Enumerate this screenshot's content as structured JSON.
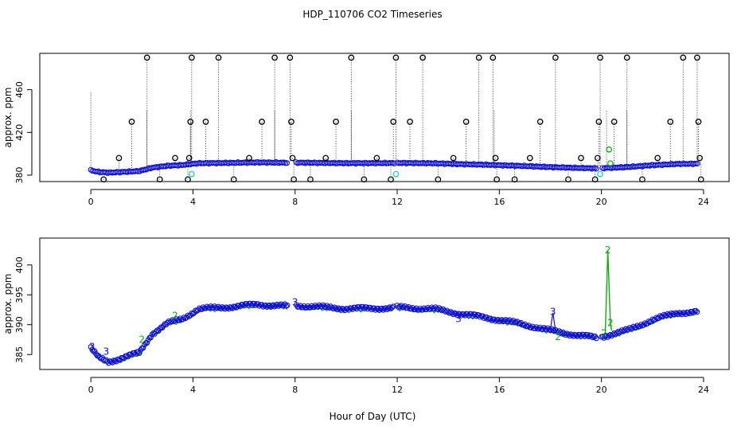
{
  "figure": {
    "title": "HDP_110706  CO2 Timeseries",
    "xlabel": "Hour of Day (UTC)"
  },
  "chart_data": [
    {
      "type": "scatter",
      "name": "top-panel",
      "ylabel": "approx. ppm",
      "xlim": [
        -2,
        25
      ],
      "ylim": [
        374,
        494
      ],
      "x_ticks": [
        0,
        4,
        8,
        12,
        16,
        20,
        24
      ],
      "x_tick_labels": [
        "0",
        "4",
        "8",
        "12",
        "16",
        "20",
        "24"
      ],
      "y_ticks": [
        380,
        420,
        460
      ],
      "y_tick_labels": [
        "380",
        "420",
        "460"
      ],
      "trace_color": "#1010cc",
      "flag_colors": {
        "black": "#000000",
        "cyan": "#22cccc",
        "green": "#11aa11"
      },
      "black_flags": [
        {
          "x": 0.5,
          "y": 376
        },
        {
          "x": 1.1,
          "y": 396
        },
        {
          "x": 1.6,
          "y": 430
        },
        {
          "x": 2.2,
          "y": 490
        },
        {
          "x": 2.7,
          "y": 376
        },
        {
          "x": 3.3,
          "y": 396
        },
        {
          "x": 3.8,
          "y": 376
        },
        {
          "x": 3.85,
          "y": 396
        },
        {
          "x": 3.9,
          "y": 430
        },
        {
          "x": 3.95,
          "y": 490
        },
        {
          "x": 4.5,
          "y": 430
        },
        {
          "x": 5.0,
          "y": 490
        },
        {
          "x": 5.6,
          "y": 376
        },
        {
          "x": 6.2,
          "y": 396
        },
        {
          "x": 6.7,
          "y": 430
        },
        {
          "x": 7.2,
          "y": 490
        },
        {
          "x": 7.8,
          "y": 490
        },
        {
          "x": 7.85,
          "y": 430
        },
        {
          "x": 7.9,
          "y": 396
        },
        {
          "x": 7.95,
          "y": 376
        },
        {
          "x": 8.6,
          "y": 376
        },
        {
          "x": 9.2,
          "y": 396
        },
        {
          "x": 9.6,
          "y": 430
        },
        {
          "x": 10.2,
          "y": 490
        },
        {
          "x": 10.7,
          "y": 376
        },
        {
          "x": 11.2,
          "y": 396
        },
        {
          "x": 11.75,
          "y": 376
        },
        {
          "x": 11.85,
          "y": 430
        },
        {
          "x": 11.95,
          "y": 490
        },
        {
          "x": 12.5,
          "y": 430
        },
        {
          "x": 13.0,
          "y": 490
        },
        {
          "x": 13.6,
          "y": 376
        },
        {
          "x": 14.2,
          "y": 396
        },
        {
          "x": 14.7,
          "y": 430
        },
        {
          "x": 15.2,
          "y": 490
        },
        {
          "x": 15.75,
          "y": 490
        },
        {
          "x": 15.85,
          "y": 396
        },
        {
          "x": 15.9,
          "y": 376
        },
        {
          "x": 16.6,
          "y": 376
        },
        {
          "x": 17.2,
          "y": 396
        },
        {
          "x": 17.6,
          "y": 430
        },
        {
          "x": 18.2,
          "y": 490
        },
        {
          "x": 18.7,
          "y": 376
        },
        {
          "x": 19.2,
          "y": 396
        },
        {
          "x": 19.75,
          "y": 376
        },
        {
          "x": 19.85,
          "y": 396
        },
        {
          "x": 19.9,
          "y": 430
        },
        {
          "x": 19.95,
          "y": 490
        },
        {
          "x": 20.5,
          "y": 430
        },
        {
          "x": 21.0,
          "y": 490
        },
        {
          "x": 21.6,
          "y": 376
        },
        {
          "x": 22.2,
          "y": 396
        },
        {
          "x": 22.7,
          "y": 430
        },
        {
          "x": 23.2,
          "y": 490
        },
        {
          "x": 23.75,
          "y": 490
        },
        {
          "x": 23.8,
          "y": 430
        },
        {
          "x": 23.85,
          "y": 396
        },
        {
          "x": 23.9,
          "y": 376
        }
      ],
      "cyan_flags": [
        {
          "x": 3.95,
          "y": 381
        },
        {
          "x": 11.95,
          "y": 381
        },
        {
          "x": 19.95,
          "y": 381
        }
      ],
      "green_flags": [
        {
          "x": 20.3,
          "y": 404
        },
        {
          "x": 20.35,
          "y": 391
        }
      ]
    },
    {
      "type": "scatter",
      "name": "bottom-panel",
      "ylabel": "approx. ppm",
      "xlim": [
        -2,
        25
      ],
      "ylim": [
        382.5,
        404.5
      ],
      "x_ticks": [
        0,
        4,
        8,
        12,
        16,
        20,
        24
      ],
      "x_tick_labels": [
        "0",
        "4",
        "8",
        "12",
        "16",
        "20",
        "24"
      ],
      "y_ticks": [
        385,
        390,
        395,
        400
      ],
      "y_tick_labels": [
        "385",
        "390",
        "395",
        "400"
      ],
      "series_colors": {
        "blue": "#1010cc",
        "green": "#11aa11"
      },
      "gaps": [
        [
          7.7,
          8.0
        ],
        [
          11.9,
          12.0
        ],
        [
          19.85,
          20.0
        ]
      ],
      "trend": [
        {
          "x": 0.0,
          "y": 386.0
        },
        {
          "x": 0.3,
          "y": 384.5
        },
        {
          "x": 0.7,
          "y": 383.8
        },
        {
          "x": 1.2,
          "y": 384.4
        },
        {
          "x": 1.9,
          "y": 385.3
        },
        {
          "x": 2.4,
          "y": 388.5
        },
        {
          "x": 3.0,
          "y": 390.2
        },
        {
          "x": 3.6,
          "y": 391.0
        },
        {
          "x": 4.2,
          "y": 392.6
        },
        {
          "x": 5.5,
          "y": 393.0
        },
        {
          "x": 6.5,
          "y": 393.4
        },
        {
          "x": 7.7,
          "y": 393.1
        },
        {
          "x": 8.0,
          "y": 393.2
        },
        {
          "x": 10.0,
          "y": 392.7
        },
        {
          "x": 11.9,
          "y": 392.8
        },
        {
          "x": 12.0,
          "y": 392.9
        },
        {
          "x": 13.5,
          "y": 392.6
        },
        {
          "x": 14.5,
          "y": 391.8
        },
        {
          "x": 15.5,
          "y": 391.2
        },
        {
          "x": 16.0,
          "y": 390.8
        },
        {
          "x": 17.0,
          "y": 390.0
        },
        {
          "x": 18.0,
          "y": 389.0
        },
        {
          "x": 19.0,
          "y": 388.3
        },
        {
          "x": 19.85,
          "y": 387.8
        },
        {
          "x": 20.0,
          "y": 388.0
        },
        {
          "x": 21.0,
          "y": 389.0
        },
        {
          "x": 22.0,
          "y": 390.8
        },
        {
          "x": 23.0,
          "y": 392.0
        },
        {
          "x": 23.8,
          "y": 392.2
        }
      ],
      "label_marks": [
        {
          "x": 0.05,
          "y": 386.3,
          "text": "3",
          "color": "blue"
        },
        {
          "x": 0.6,
          "y": 385.5,
          "text": "3",
          "color": "blue"
        },
        {
          "x": 2.0,
          "y": 387.5,
          "text": "2",
          "color": "green"
        },
        {
          "x": 3.3,
          "y": 391.5,
          "text": "2",
          "color": "green"
        },
        {
          "x": 8.0,
          "y": 393.8,
          "text": "3",
          "color": "blue"
        },
        {
          "x": 14.4,
          "y": 391.0,
          "text": "3",
          "color": "blue"
        },
        {
          "x": 18.1,
          "y": 392.2,
          "text": "3",
          "color": "blue"
        },
        {
          "x": 18.3,
          "y": 388.0,
          "text": "2",
          "color": "green"
        },
        {
          "x": 20.25,
          "y": 402.5,
          "text": "2",
          "color": "green"
        },
        {
          "x": 20.35,
          "y": 390.3,
          "text": "2",
          "color": "green"
        },
        {
          "x": 20.1,
          "y": 388.6,
          "text": "2",
          "color": "green"
        }
      ],
      "spike": [
        {
          "x": 20.15,
          "y": 388.5
        },
        {
          "x": 20.25,
          "y": 402.5
        },
        {
          "x": 20.35,
          "y": 390.3
        },
        {
          "x": 20.4,
          "y": 389.0
        }
      ],
      "bump": [
        {
          "x": 18.0,
          "y": 389.2
        },
        {
          "x": 18.1,
          "y": 392.0
        },
        {
          "x": 18.2,
          "y": 389.0
        }
      ]
    }
  ]
}
